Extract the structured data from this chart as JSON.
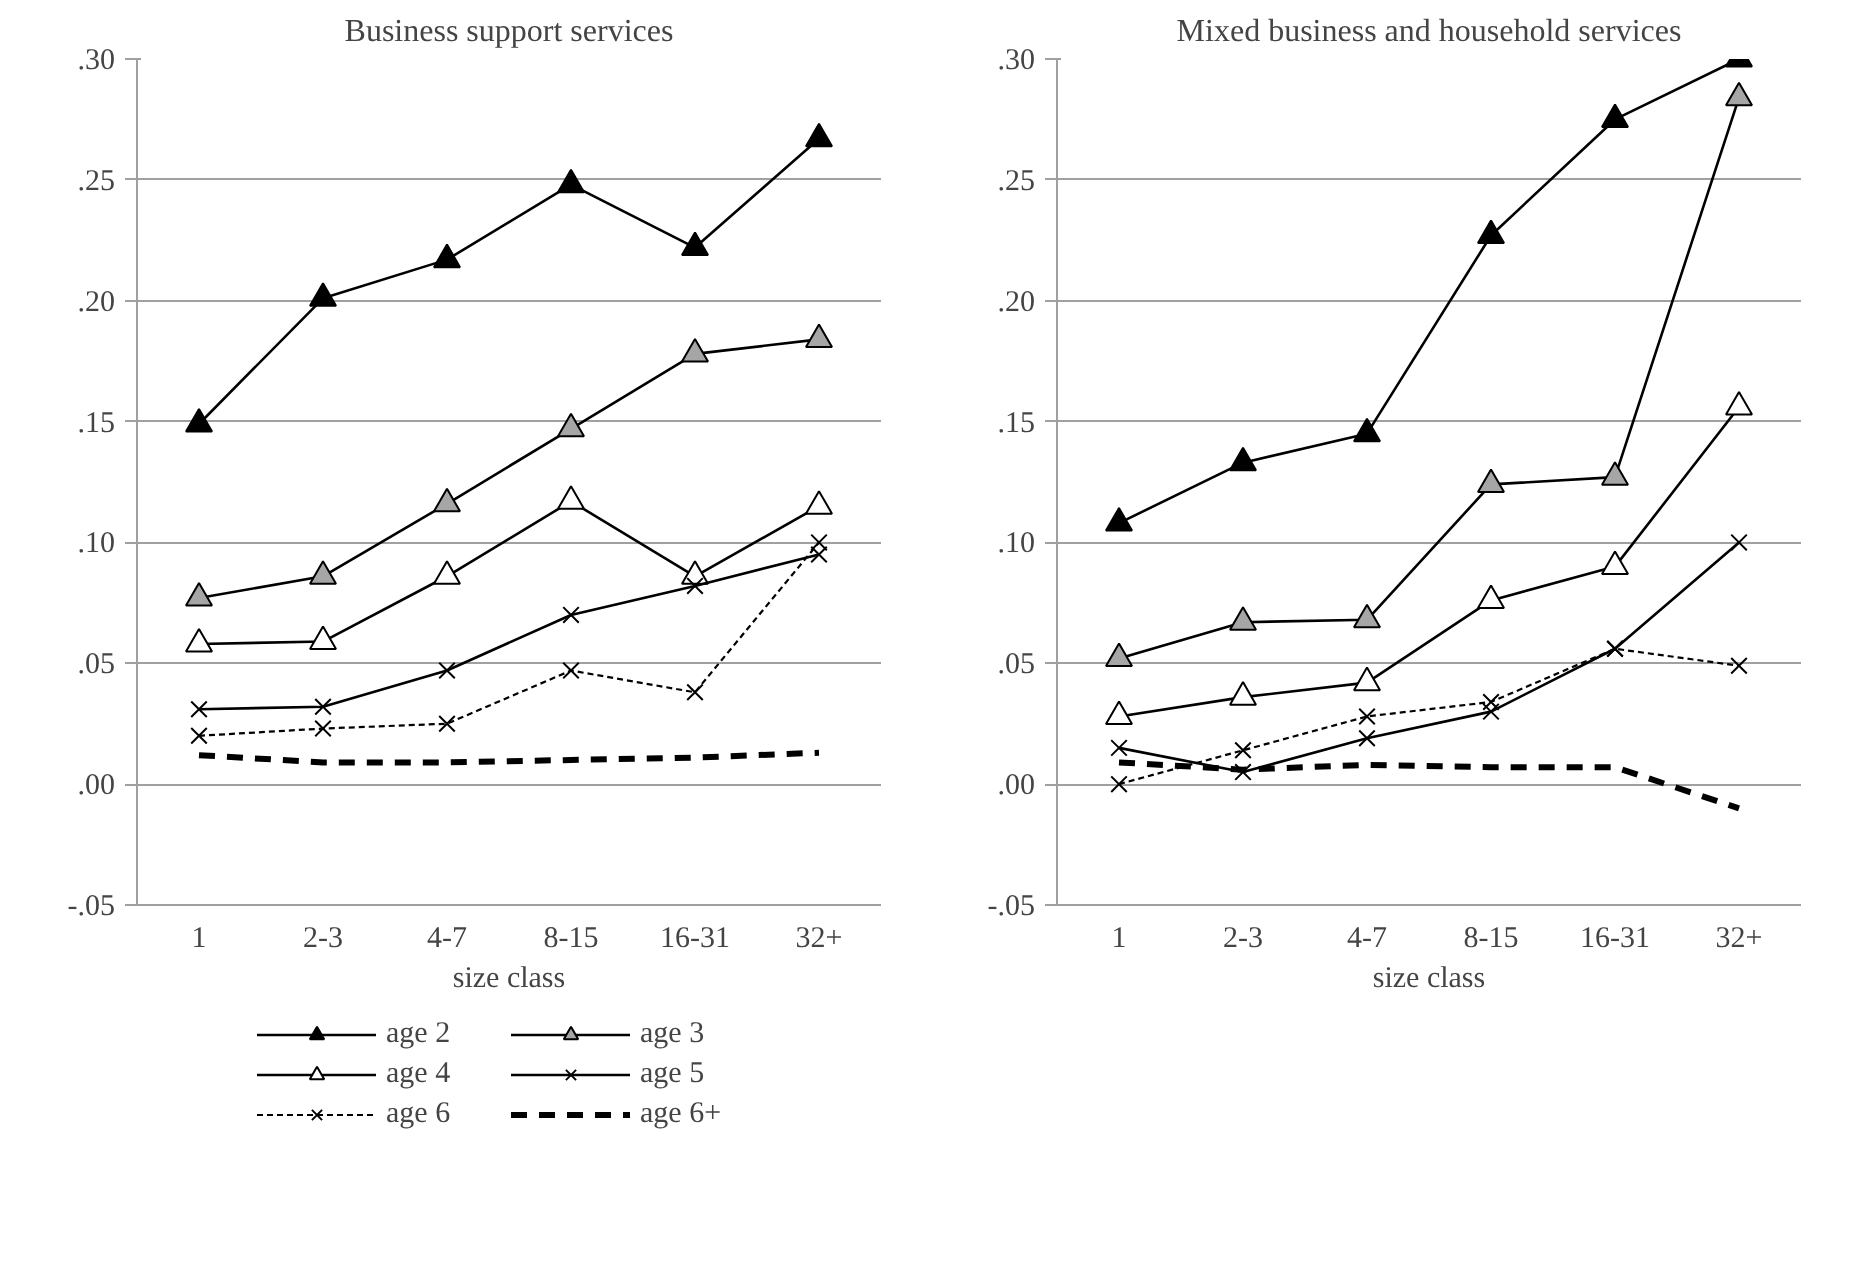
{
  "chart_data": [
    {
      "type": "line",
      "title": "Business support services",
      "xlabel": "size class",
      "categories": [
        "1",
        "2-3",
        "4-7",
        "8-15",
        "16-31",
        "32+"
      ],
      "ylim": [
        -0.05,
        0.3
      ],
      "yticks": [
        {
          "value": -0.05,
          "label": "-.05"
        },
        {
          "value": 0,
          "label": ".00"
        },
        {
          "value": 0.05,
          "label": ".05"
        },
        {
          "value": 0.1,
          "label": ".10"
        },
        {
          "value": 0.15,
          "label": ".15"
        },
        {
          "value": 0.2,
          "label": ".20"
        },
        {
          "value": 0.25,
          "label": ".25"
        },
        {
          "value": 0.3,
          "label": ".30"
        }
      ],
      "grid": "y",
      "legend": "bottom",
      "series": [
        {
          "name": "age 2",
          "color": "#000000",
          "marker": "triangle",
          "line_style": "solid",
          "values": [
            0.149,
            0.201,
            0.217,
            0.248,
            0.222,
            0.267
          ]
        },
        {
          "name": "age 3",
          "color": "#a6a6a6",
          "marker": "triangle",
          "line_style": "solid",
          "values": [
            0.077,
            0.086,
            0.116,
            0.147,
            0.178,
            0.184
          ]
        },
        {
          "name": "age 4",
          "color": "#ffffff",
          "marker": "triangle",
          "line_style": "solid",
          "values": [
            0.058,
            0.059,
            0.086,
            0.117,
            0.086,
            0.115
          ]
        },
        {
          "name": "age 5",
          "color": "#000000",
          "marker": "cross",
          "line_style": "solid",
          "values": [
            0.031,
            0.032,
            0.047,
            0.07,
            0.082,
            0.095
          ]
        },
        {
          "name": "age 6",
          "color": "#000000",
          "marker": "cross",
          "line_style": "dotted",
          "values": [
            0.02,
            0.023,
            0.025,
            0.047,
            0.038,
            0.1
          ]
        },
        {
          "name": "age 6+",
          "color": "#000000",
          "marker": "none",
          "line_style": "dashed",
          "values": [
            0.012,
            0.009,
            0.009,
            0.01,
            0.011,
            0.013
          ]
        }
      ]
    },
    {
      "type": "line",
      "title": "Mixed business and household services",
      "xlabel": "size class",
      "categories": [
        "1",
        "2-3",
        "4-7",
        "8-15",
        "16-31",
        "32+"
      ],
      "ylim": [
        -0.05,
        0.3
      ],
      "yticks": [
        {
          "value": -0.05,
          "label": "-.05"
        },
        {
          "value": 0,
          "label": ".00"
        },
        {
          "value": 0.05,
          "label": ".05"
        },
        {
          "value": 0.1,
          "label": ".10"
        },
        {
          "value": 0.15,
          "label": ".15"
        },
        {
          "value": 0.2,
          "label": ".20"
        },
        {
          "value": 0.25,
          "label": ".25"
        },
        {
          "value": 0.3,
          "label": ".30"
        }
      ],
      "grid": "y",
      "legend": false,
      "series": [
        {
          "color": "#000000",
          "marker": "triangle",
          "line_style": "solid",
          "values": [
            0.108,
            0.133,
            0.145,
            0.227,
            0.275,
            0.3
          ]
        },
        {
          "color": "#a6a6a6",
          "marker": "triangle",
          "line_style": "solid",
          "values": [
            0.052,
            0.067,
            0.068,
            0.124,
            0.127,
            0.284
          ]
        },
        {
          "color": "#ffffff",
          "marker": "triangle",
          "line_style": "solid",
          "values": [
            0.028,
            0.036,
            0.042,
            0.076,
            0.09,
            0.156
          ]
        },
        {
          "color": "#000000",
          "marker": "cross",
          "line_style": "solid",
          "values": [
            0.015,
            0.005,
            0.019,
            0.03,
            0.056,
            0.1
          ]
        },
        {
          "color": "#000000",
          "marker": "cross",
          "line_style": "dotted",
          "values": [
            0.0,
            0.014,
            0.028,
            0.034,
            0.056,
            0.049
          ]
        },
        {
          "color": "#000000",
          "marker": "none",
          "line_style": "dashed",
          "values": [
            0.009,
            0.006,
            0.008,
            0.007,
            0.007,
            -0.01
          ]
        }
      ]
    }
  ]
}
